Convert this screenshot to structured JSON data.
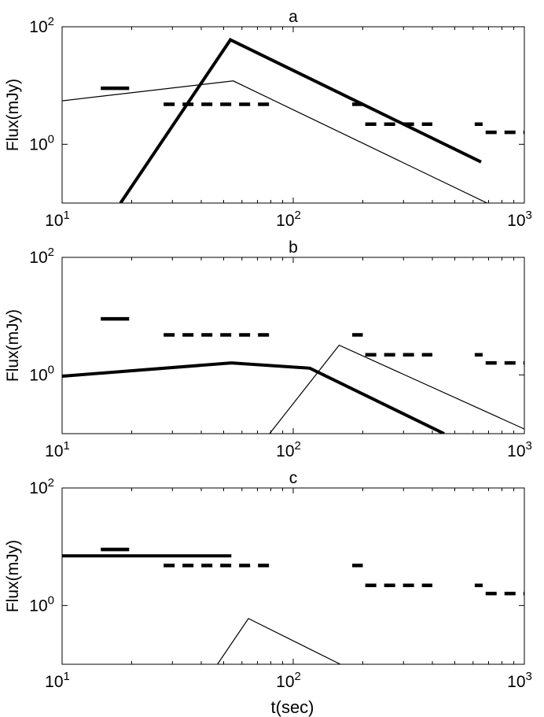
{
  "xlabel": "t(sec)",
  "chart_data": [
    {
      "type": "line",
      "title": "a",
      "xlabel": "",
      "ylabel": "Flux(mJy)",
      "xscale": "log",
      "yscale": "log",
      "xlim": [
        10,
        1000
      ],
      "ylim": [
        0.1,
        100
      ],
      "xticks": [
        {
          "mant": "10",
          "exp": "1"
        },
        {
          "mant": "10",
          "exp": "2"
        },
        {
          "mant": "10",
          "exp": "3"
        }
      ],
      "yticks": [
        {
          "mant": "10",
          "exp": "0",
          "value": 1
        },
        {
          "mant": "10",
          "exp": "2",
          "value": 100
        }
      ],
      "grid": false,
      "upper_limits": [
        {
          "x": [
            14.7,
            19.5
          ],
          "y": 9
        },
        {
          "x": [
            27.5,
            82
          ],
          "y": 4.8
        },
        {
          "x": [
            180,
            200
          ],
          "y": 4.8
        },
        {
          "x": [
            205,
            400
          ],
          "y": 2.2
        },
        {
          "x": [
            610,
            660
          ],
          "y": 2.2
        },
        {
          "x": [
            680,
            1000
          ],
          "y": 1.6
        }
      ],
      "series": [
        {
          "style": "thick",
          "x": [
            17.9,
            53.5,
            650
          ],
          "y": [
            0.1,
            60,
            0.5
          ]
        },
        {
          "style": "thin",
          "x": [
            10,
            55,
            690
          ],
          "y": [
            5.5,
            12,
            0.1
          ]
        }
      ]
    },
    {
      "type": "line",
      "title": "b",
      "xlabel": "",
      "ylabel": "Flux(mJy)",
      "xscale": "log",
      "yscale": "log",
      "xlim": [
        10,
        1000
      ],
      "ylim": [
        0.1,
        100
      ],
      "xticks": [
        {
          "mant": "10",
          "exp": "1"
        },
        {
          "mant": "10",
          "exp": "2"
        },
        {
          "mant": "10",
          "exp": "3"
        }
      ],
      "yticks": [
        {
          "mant": "10",
          "exp": "0",
          "value": 1
        },
        {
          "mant": "10",
          "exp": "2",
          "value": 100
        }
      ],
      "grid": false,
      "upper_limits": [
        {
          "x": [
            14.7,
            19.5
          ],
          "y": 9
        },
        {
          "x": [
            27.5,
            82
          ],
          "y": 4.8
        },
        {
          "x": [
            180,
            200
          ],
          "y": 4.8
        },
        {
          "x": [
            205,
            400
          ],
          "y": 2.2
        },
        {
          "x": [
            610,
            660
          ],
          "y": 2.2
        },
        {
          "x": [
            680,
            1000
          ],
          "y": 1.6
        }
      ],
      "series": [
        {
          "style": "thick",
          "x": [
            10,
            54,
            118,
            450
          ],
          "y": [
            0.95,
            1.6,
            1.3,
            0.1
          ]
        },
        {
          "style": "thin",
          "x": [
            79,
            158,
            1000
          ],
          "y": [
            0.1,
            3.2,
            0.12
          ]
        }
      ]
    },
    {
      "type": "line",
      "title": "c",
      "xlabel": "",
      "ylabel": "Flux(mJy)",
      "xscale": "log",
      "yscale": "log",
      "xlim": [
        10,
        1000
      ],
      "ylim": [
        0.1,
        100
      ],
      "xticks": [
        {
          "mant": "10",
          "exp": "1"
        },
        {
          "mant": "10",
          "exp": "2"
        },
        {
          "mant": "10",
          "exp": "3"
        }
      ],
      "yticks": [
        {
          "mant": "10",
          "exp": "0",
          "value": 1
        },
        {
          "mant": "10",
          "exp": "2",
          "value": 100
        }
      ],
      "grid": false,
      "upper_limits": [
        {
          "x": [
            14.7,
            19.5
          ],
          "y": 9
        },
        {
          "x": [
            27.5,
            82
          ],
          "y": 4.8
        },
        {
          "x": [
            180,
            200
          ],
          "y": 4.8
        },
        {
          "x": [
            205,
            400
          ],
          "y": 2.2
        },
        {
          "x": [
            610,
            660
          ],
          "y": 2.2
        },
        {
          "x": [
            680,
            1000
          ],
          "y": 1.6
        }
      ],
      "series": [
        {
          "style": "thick",
          "x": [
            10,
            54
          ],
          "y": [
            7,
            7
          ]
        },
        {
          "style": "thin",
          "x": [
            47,
            64,
            160
          ],
          "y": [
            0.1,
            0.6,
            0.1
          ]
        }
      ]
    }
  ]
}
